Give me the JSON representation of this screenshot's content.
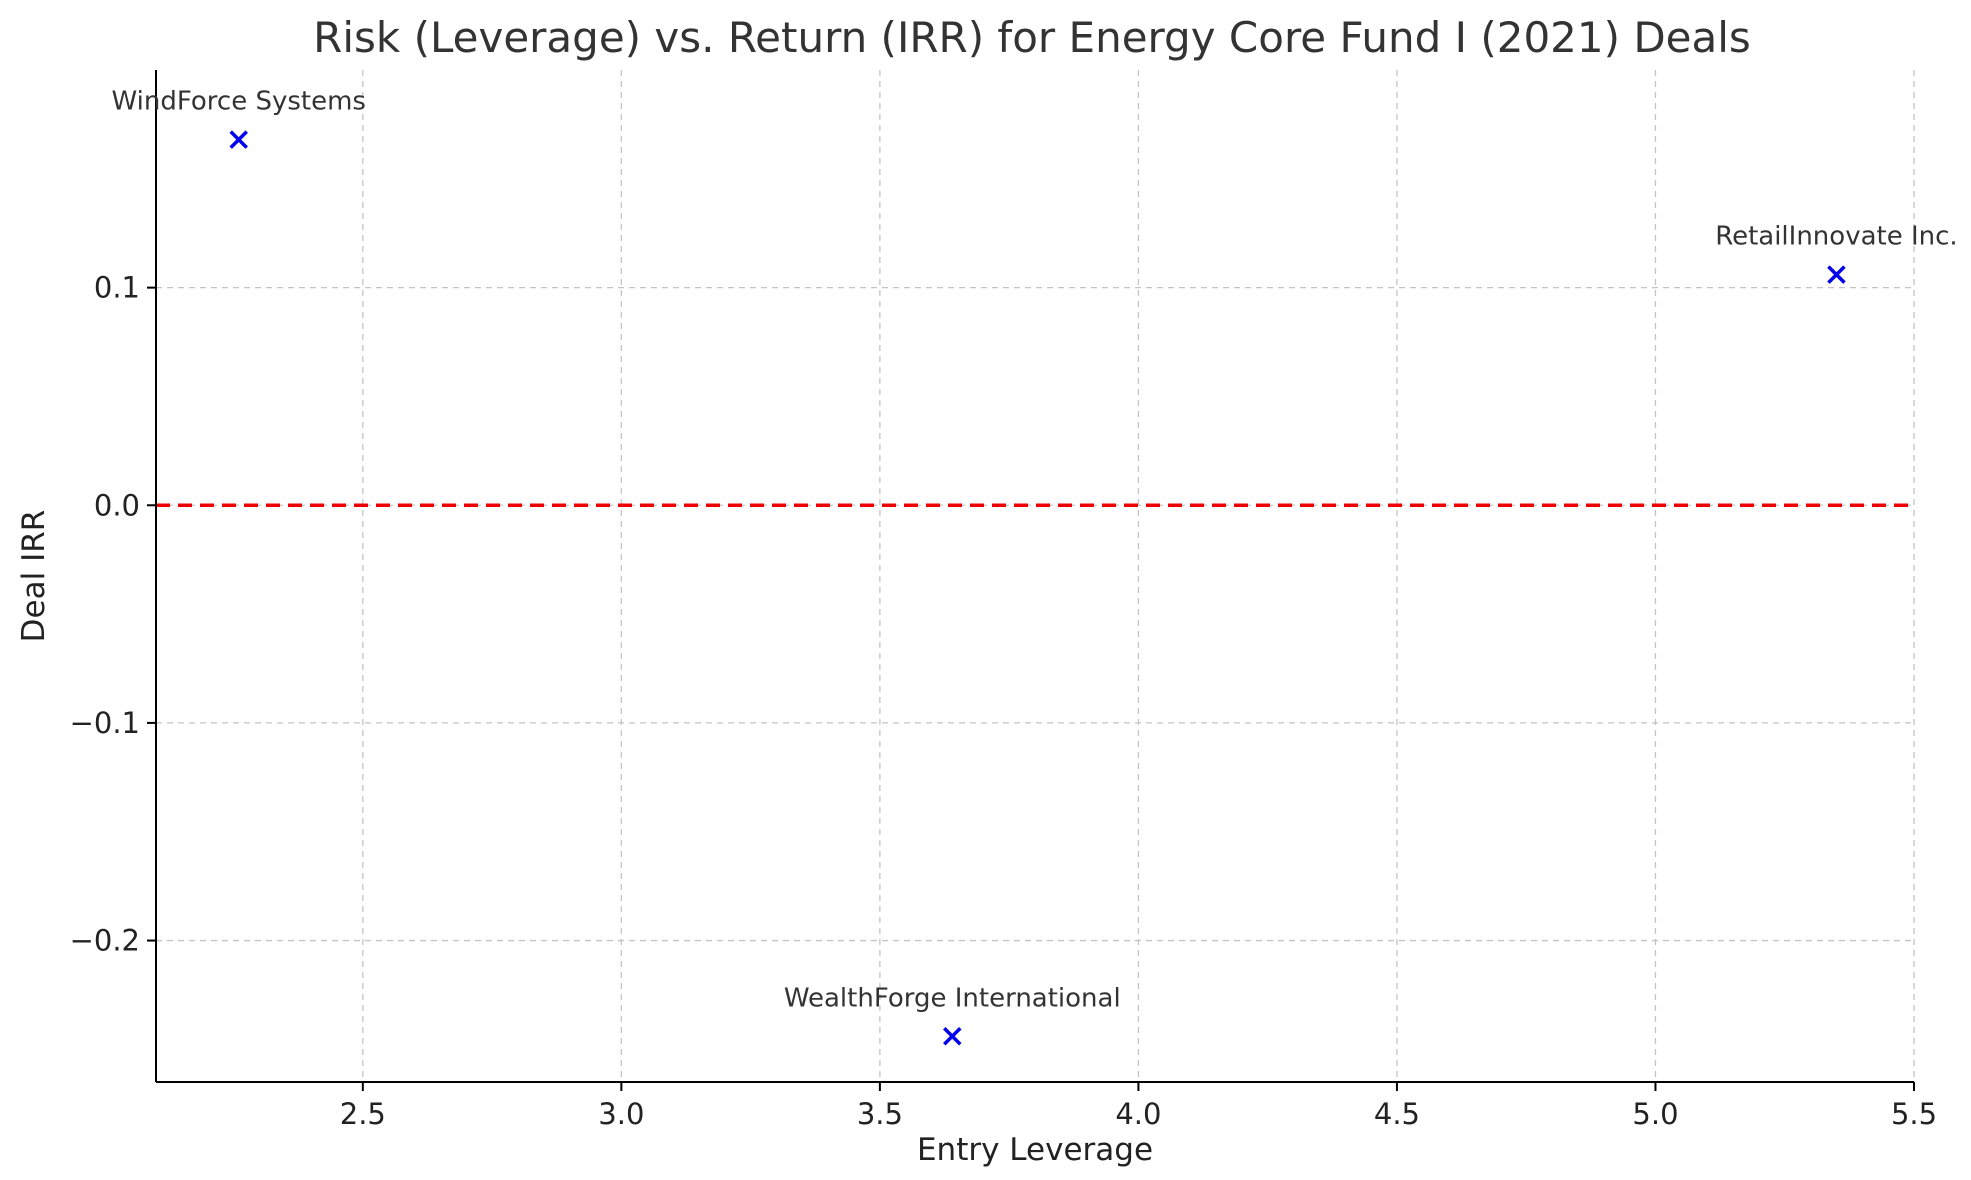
{
  "chart_data": {
    "type": "scatter",
    "title": "Risk (Leverage) vs. Return (IRR) for Energy Core Fund I (2021) Deals",
    "xlabel": "Entry Leverage",
    "ylabel": "Deal IRR",
    "xlim": [
      2.1,
      5.5
    ],
    "ylim": [
      -0.265,
      0.2
    ],
    "x_ticks": [
      2.5,
      3.0,
      3.5,
      4.0,
      4.5,
      5.0,
      5.5
    ],
    "x_tick_labels": [
      "2.5",
      "3.0",
      "3.5",
      "4.0",
      "4.5",
      "5.0",
      "5.5"
    ],
    "y_ticks": [
      0.1,
      0.0,
      -0.1,
      -0.2
    ],
    "y_tick_labels": [
      "0.1",
      "0.0",
      "−0.1",
      "−0.2"
    ],
    "grid": true,
    "marker": "x",
    "marker_color": "#0000ee",
    "reference_line": {
      "y": 0.0,
      "style": "dashed",
      "color": "#ee0000"
    },
    "points": [
      {
        "label": "WindForce Systems",
        "x": 2.26,
        "y": 0.168
      },
      {
        "label": "RetailInnovate Inc.",
        "x": 5.35,
        "y": 0.106
      },
      {
        "label": "WealthForge International",
        "x": 3.64,
        "y": -0.244
      }
    ]
  }
}
